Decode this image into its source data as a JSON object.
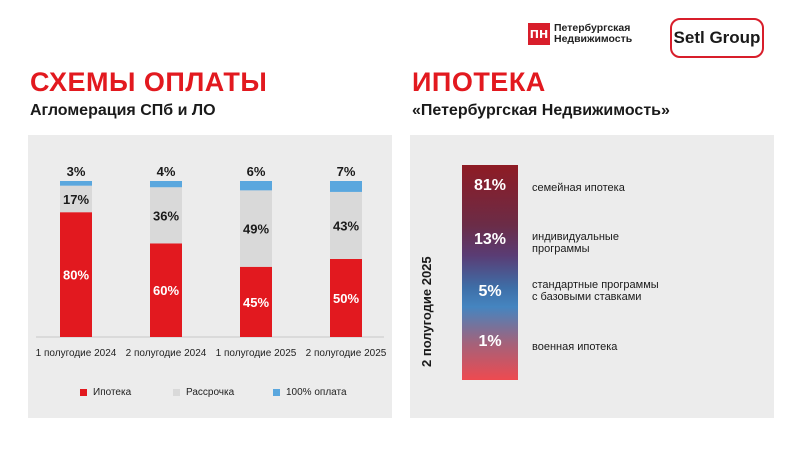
{
  "brand": {
    "pn_mark": "ПН",
    "pn_line1": "Петербургская",
    "pn_line2": "Недвижимость",
    "setl": "Setl Group"
  },
  "left": {
    "title": "СХЕМЫ ОПЛАТЫ",
    "subtitle": "Агломерация СПб и ЛО"
  },
  "right": {
    "title": "ИПОТЕКА",
    "subtitle": "«Петербургская Недвижимость»"
  },
  "chart_data": [
    {
      "type": "bar",
      "stacked": true,
      "categories": [
        "1 полугодие 2024",
        "2 полугодие 2024",
        "1 полугодие 2025",
        "2 полугодие 2025"
      ],
      "series": [
        {
          "name": "Ипотека",
          "values": [
            80,
            60,
            45,
            50
          ],
          "labels": [
            "80%",
            "60%",
            "45%",
            "50%"
          ],
          "color": "#e2191f"
        },
        {
          "name": "Рассрочка",
          "values": [
            17,
            36,
            49,
            43
          ],
          "labels": [
            "17%",
            "36%",
            "49%",
            "43%"
          ],
          "color": "#d9d9d9"
        },
        {
          "name": "100% оплата",
          "values": [
            3,
            4,
            6,
            7
          ],
          "labels": [
            "3%",
            "4%",
            "6%",
            "7%"
          ],
          "color": "#5aa7de"
        }
      ],
      "ylim": [
        0,
        100
      ]
    },
    {
      "type": "bar",
      "stacked": true,
      "title": "2 полугодие 2025",
      "segments": [
        {
          "value": 81,
          "label": "81%",
          "name": "семейная ипотека"
        },
        {
          "value": 13,
          "label": "13%",
          "name": "индивидуальные программы"
        },
        {
          "value": 5,
          "label": "5%",
          "name": "стандартные программы с базовыми ставками"
        },
        {
          "value": 1,
          "label": "1%",
          "name": "военная ипотека"
        }
      ]
    }
  ],
  "mortgage": {
    "period": "2 полугодие 2025",
    "items": [
      {
        "pct": "81%",
        "line1": "семейная ипотека",
        "line2": ""
      },
      {
        "pct": "13%",
        "line1": "индивидуальные",
        "line2": "программы"
      },
      {
        "pct": "5%",
        "line1": "стандартные программы",
        "line2": "с базовыми ставками"
      },
      {
        "pct": "1%",
        "line1": "военная ипотека",
        "line2": ""
      }
    ]
  },
  "colors": {
    "accent": "#e2191f",
    "panel": "#ececec",
    "rassrochka": "#d9d9d9",
    "full": "#5aa7de"
  }
}
